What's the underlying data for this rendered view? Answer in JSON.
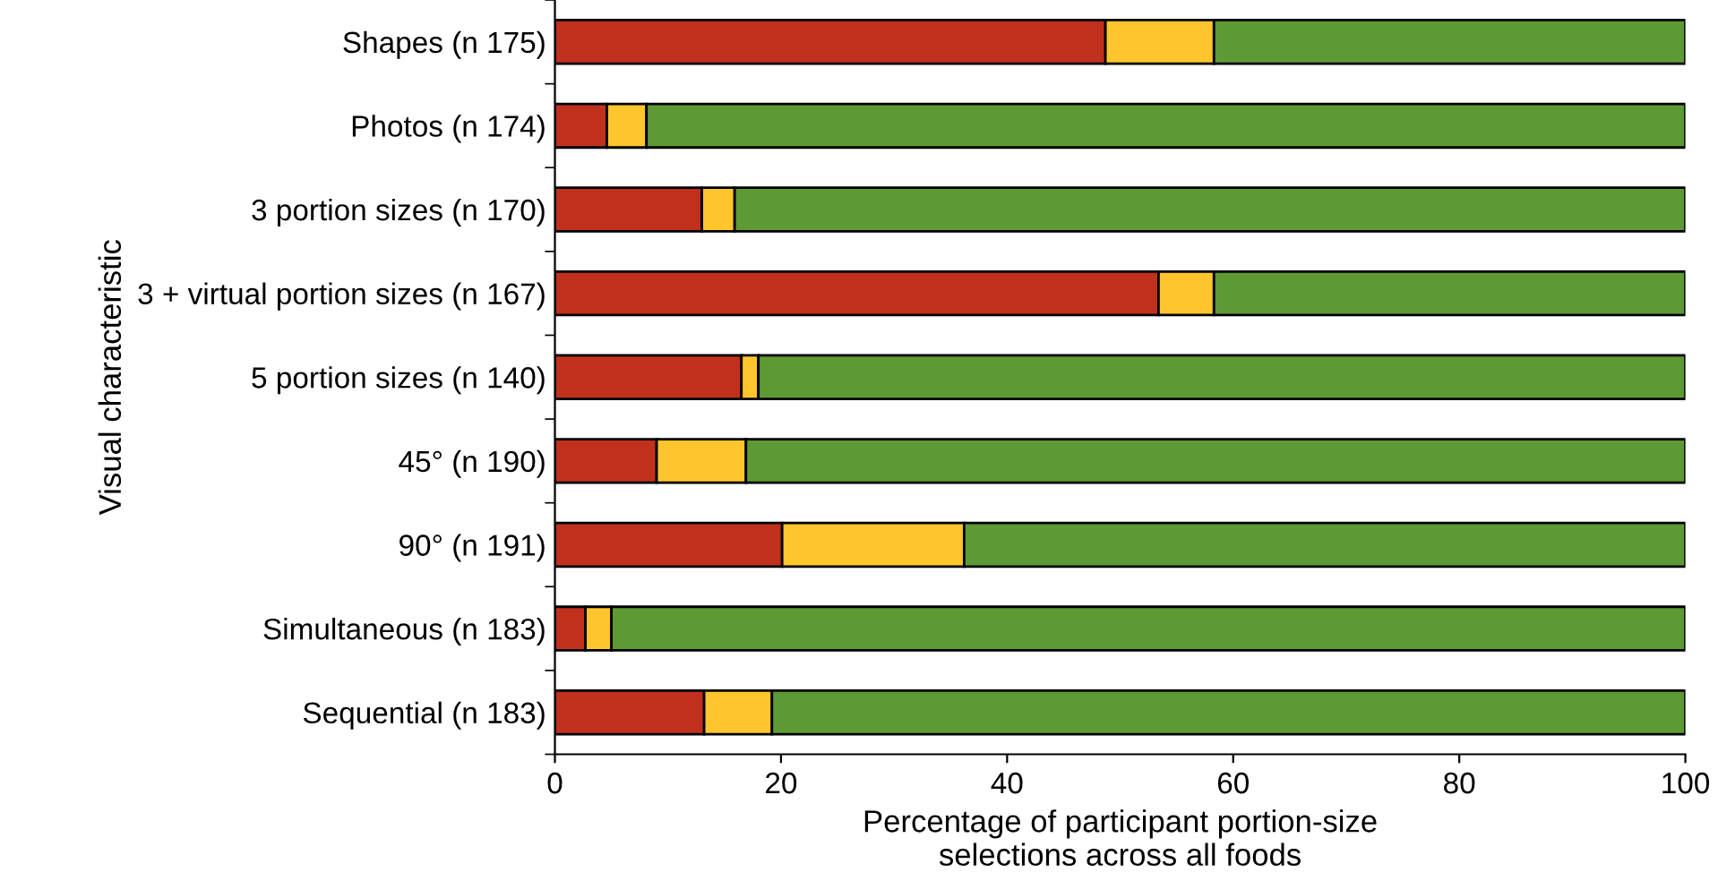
{
  "chart_data": {
    "type": "bar",
    "orientation": "horizontal",
    "stacked": true,
    "categories": [
      "Shapes (n 175)",
      "Photos (n 174)",
      "3 portion sizes (n 170)",
      "3 + virtual portion sizes (n 167)",
      "5 portion sizes (n 140)",
      "45° (n 190)",
      "90° (n 191)",
      "Simultaneous (n 183)",
      "Sequential (n 183)"
    ],
    "series": [
      {
        "color": "#c0311d",
        "values": [
          48.7,
          4.6,
          13.0,
          53.4,
          16.5,
          9.0,
          20.1,
          2.7,
          13.2
        ]
      },
      {
        "color": "#fec52c",
        "values": [
          9.6,
          3.5,
          2.9,
          4.9,
          1.5,
          7.9,
          16.1,
          2.3,
          6.0
        ]
      },
      {
        "color": "#5e9a33",
        "values": [
          41.7,
          91.9,
          84.1,
          41.7,
          82.0,
          83.1,
          63.8,
          95.0,
          80.8
        ]
      }
    ],
    "xlim": [
      0,
      100
    ],
    "xticks": [
      0,
      20,
      40,
      60,
      80,
      100
    ],
    "xlabel": "Percentage of participant portion-size\nselections across all foods",
    "ylabel": "Visual characteristic",
    "grid": false,
    "legend": false
  }
}
